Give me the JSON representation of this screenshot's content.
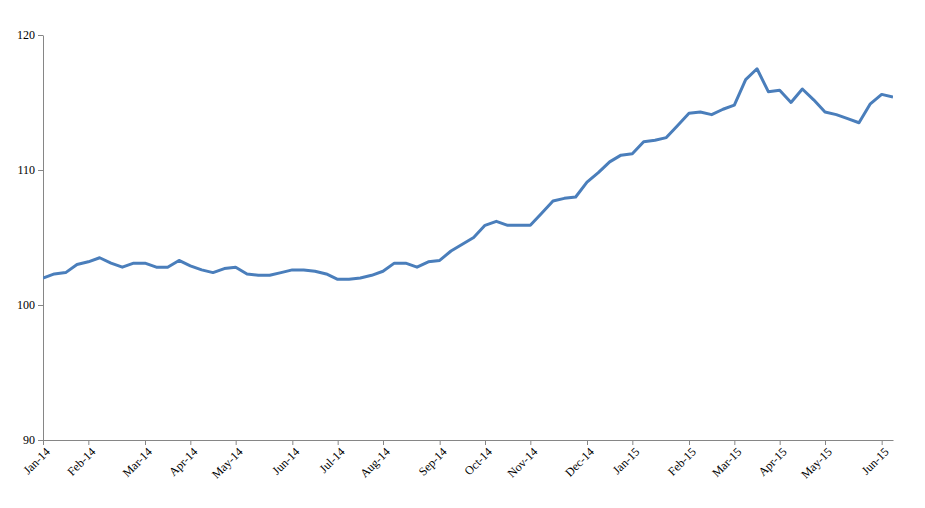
{
  "chart_data": {
    "type": "line",
    "categories": [
      "Jan-14",
      null,
      null,
      null,
      "Feb-14",
      null,
      null,
      null,
      null,
      "Mar-14",
      null,
      null,
      null,
      "Apr-14",
      null,
      null,
      null,
      "May-14",
      null,
      null,
      null,
      null,
      "Jun-14",
      null,
      null,
      null,
      "Jul-14",
      null,
      null,
      null,
      "Aug-14",
      null,
      null,
      null,
      null,
      "Sep-14",
      null,
      null,
      null,
      "Oct-14",
      null,
      null,
      null,
      "Nov-14",
      null,
      null,
      null,
      null,
      "Dec-14",
      null,
      null,
      null,
      "Jan-15",
      null,
      null,
      null,
      null,
      "Feb-15",
      null,
      null,
      null,
      "Mar-15",
      null,
      null,
      null,
      "Apr-15",
      null,
      null,
      null,
      "May-15",
      null,
      null,
      null,
      null,
      "Jun-15",
      null
    ],
    "values": [
      102.0,
      102.3,
      102.4,
      103.0,
      103.2,
      103.5,
      103.1,
      102.8,
      103.1,
      103.1,
      102.8,
      102.8,
      103.3,
      102.9,
      102.6,
      102.4,
      102.7,
      102.8,
      102.3,
      102.2,
      102.2,
      102.4,
      102.6,
      102.6,
      102.5,
      102.3,
      101.9,
      101.9,
      102.0,
      102.2,
      102.5,
      103.1,
      103.1,
      102.8,
      103.2,
      103.3,
      104.0,
      104.5,
      105.0,
      105.9,
      106.2,
      105.9,
      105.9,
      105.9,
      106.8,
      107.7,
      107.9,
      108.0,
      109.1,
      109.8,
      110.6,
      111.1,
      111.2,
      112.1,
      112.2,
      112.4,
      113.3,
      114.2,
      114.3,
      114.1,
      114.5,
      114.8,
      116.7,
      117.5,
      115.8,
      115.9,
      115.0,
      116.0,
      115.2,
      114.3,
      114.1,
      113.8,
      113.5,
      114.9,
      115.6,
      115.4
    ],
    "color": "#4a7ebb",
    "ylim": [
      90,
      120
    ],
    "yticks": [
      90,
      100,
      110,
      120
    ],
    "grid": false
  }
}
